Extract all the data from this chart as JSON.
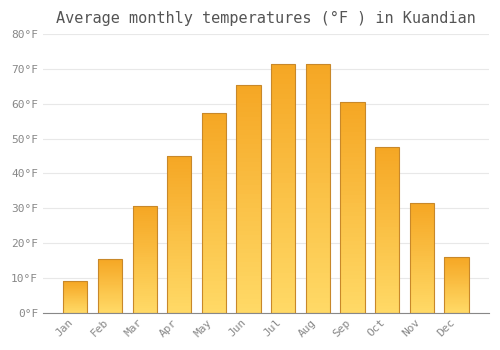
{
  "title": "Average monthly temperatures (°F ) in Kuandian",
  "months": [
    "Jan",
    "Feb",
    "Mar",
    "Apr",
    "May",
    "Jun",
    "Jul",
    "Aug",
    "Sep",
    "Oct",
    "Nov",
    "Dec"
  ],
  "values": [
    9,
    15.5,
    30.5,
    45,
    57.5,
    65.5,
    71.5,
    71.5,
    60.5,
    47.5,
    31.5,
    16
  ],
  "bar_color_top": "#F5A623",
  "bar_color_bottom": "#FFD966",
  "bar_edge_color": "#C8882A",
  "ylim": [
    0,
    80
  ],
  "yticks": [
    0,
    10,
    20,
    30,
    40,
    50,
    60,
    70,
    80
  ],
  "ytick_labels": [
    "0°F",
    "10°F",
    "20°F",
    "30°F",
    "40°F",
    "50°F",
    "60°F",
    "70°F",
    "80°F"
  ],
  "background_color": "#FFFFFF",
  "grid_color": "#E8E8E8",
  "title_fontsize": 11,
  "tick_fontsize": 8,
  "tick_color": "#888888"
}
